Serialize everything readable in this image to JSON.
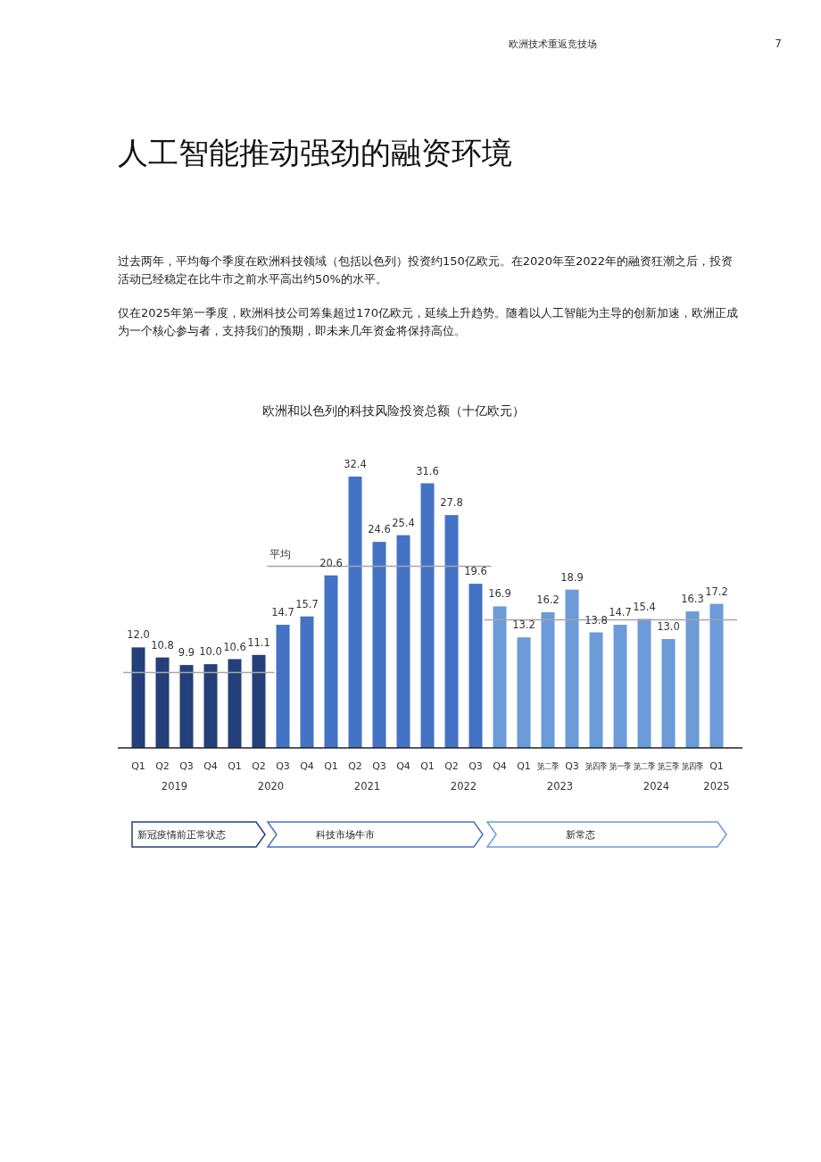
{
  "chart_data": {
    "type": "bar",
    "title": "人工智能推动强劲的融资环境",
    "subtitle": "欧洲和以色列的科技风险投资总额（十亿欧元）",
    "categories": [
      "Q1",
      "Q2",
      "Q3",
      "Q4",
      "Q1",
      "Q2",
      "Q3",
      "Q4",
      "Q1",
      "Q2",
      "Q3",
      "Q4",
      "Q1",
      "Q2",
      "Q3",
      "Q4",
      "Q1",
      "第二季",
      "Q3",
      "第四季",
      "第一季",
      "第二季",
      "第三季",
      "第四季",
      "Q1"
    ],
    "values": [
      12.0,
      10.8,
      9.9,
      10.0,
      10.6,
      11.1,
      14.7,
      15.7,
      20.6,
      32.4,
      24.6,
      25.4,
      31.6,
      27.8,
      19.6,
      16.9,
      13.2,
      16.2,
      18.9,
      13.8,
      14.7,
      15.4,
      13.0,
      16.3,
      17.2
    ],
    "value_labels": [
      "12.0",
      "10.8",
      "9.9",
      "10.0",
      "10.6",
      "11.1",
      "14.7",
      "15.7",
      "20.6",
      "32.4",
      "24.6",
      "25.4",
      "31.6",
      "27.8",
      "19.6",
      "16.9",
      "13.2",
      "16.2",
      "18.9",
      "13.8",
      "14.7",
      "15.4",
      "13.0",
      "16.3",
      "17.2"
    ],
    "colors": [
      "#243f7a",
      "#243f7a",
      "#243f7a",
      "#243f7a",
      "#243f7a",
      "#243f7a",
      "#4472c4",
      "#4472c4",
      "#4472c4",
      "#4472c4",
      "#4472c4",
      "#4472c4",
      "#4472c4",
      "#4472c4",
      "#4472c4",
      "#6b9bd8",
      "#6b9bd8",
      "#6b9bd8",
      "#6b9bd8",
      "#6b9bd8",
      "#6b9bd8",
      "#6b9bd8",
      "#6b9bd8",
      "#6b9bd8",
      "#6b9bd8"
    ],
    "ref_lines": [
      {
        "axis": "y",
        "value": 9.0,
        "color": "#a6a6a6"
      },
      {
        "axis": "y",
        "value": 21.7,
        "label": "平均",
        "color": "#a6a6a6"
      },
      {
        "axis": "y",
        "value": 15.3,
        "color": "#a6a6a6"
      }
    ],
    "annotations": [
      "欧洲技术重返竞技场",
      "7",
      "过去两年，平均每个季度在欧洲科技领域（包括以色列）投资约150亿欧元。在2020年至2022年的融资狂潮之后，投资活动已经稳定在比牛市之前水平高出约50%的水平。",
      "仅在2025年第一季度，欧洲科技公司筹集超过170亿欧元，延续上升趋势。随着以人工智能为主导的创新加速，欧洲正成为一个核心参与者，支持我们的预期，即未来几年资金将保持高位。",
      "2019",
      "2020",
      "2021",
      "2022",
      "2023",
      "2024",
      "2025",
      "新冠疫情前正常状态",
      "科技市场牛市",
      "新常态"
    ]
  }
}
